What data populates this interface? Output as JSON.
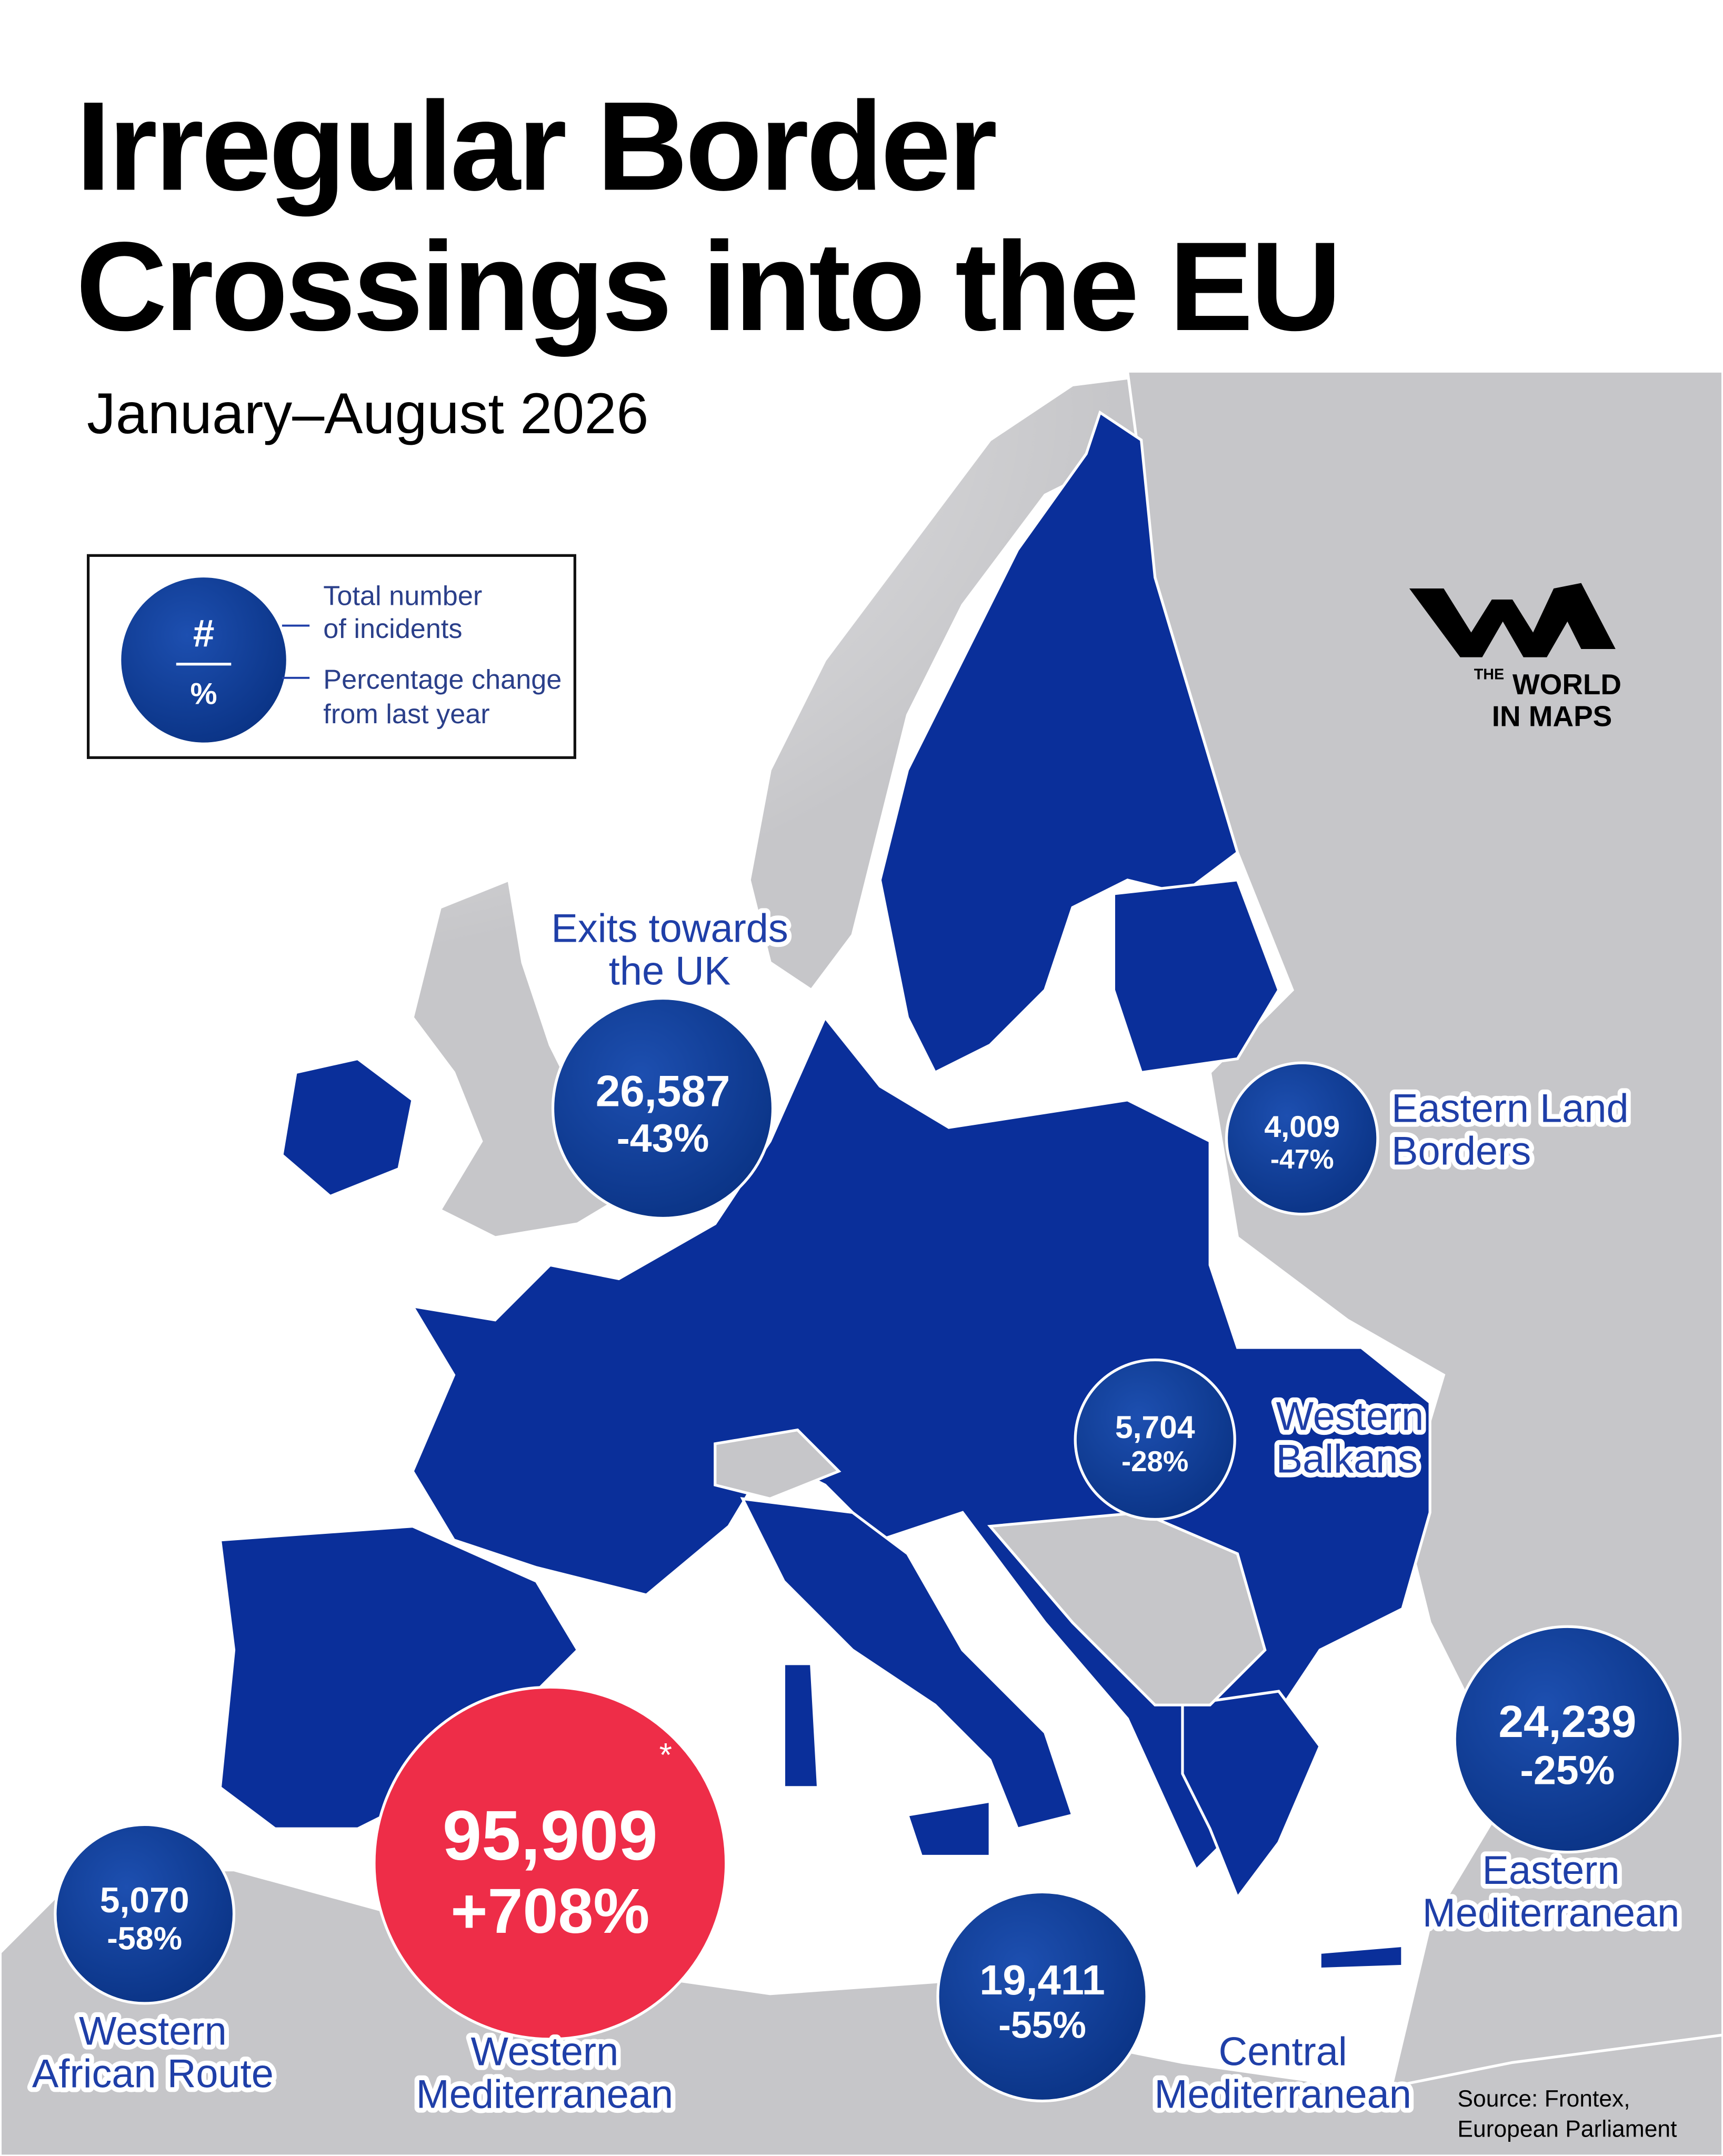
{
  "header": {
    "title": [
      "Irregular Border",
      "Crossings into the EU"
    ],
    "subtitle": "January–August 2026"
  },
  "legend": {
    "count_symbol": "#",
    "change_symbol": "%",
    "count_label": [
      "Total number",
      "of incidents"
    ],
    "change_label": [
      "Percentage change",
      "from last year"
    ]
  },
  "routes": [
    {
      "name": [
        "Exits towards",
        "the UK"
      ],
      "count": "26,587",
      "change": "-43%"
    },
    {
      "name": [
        "Eastern Land",
        "Borders"
      ],
      "count": "4,009",
      "change": "-47%"
    },
    {
      "name": [
        "Western",
        "Balkans"
      ],
      "count": "5,704",
      "change": "-28%"
    },
    {
      "name": [
        "Eastern",
        "Mediterranean"
      ],
      "count": "24,239",
      "change": "-25%"
    },
    {
      "name": [
        "Western",
        "Mediterranean"
      ],
      "count": "95,909",
      "change": "+708%",
      "note": "*"
    },
    {
      "name": [
        "Western",
        "African Route"
      ],
      "count": "5,070",
      "change": "-58%"
    },
    {
      "name": [
        "Central",
        "Mediterranean"
      ],
      "count": "19,411",
      "change": "-55%"
    }
  ],
  "logo": [
    "THE",
    "WORLD",
    "IN MAPS"
  ],
  "source": [
    "Source: Frontex,",
    "European Parliament"
  ]
}
